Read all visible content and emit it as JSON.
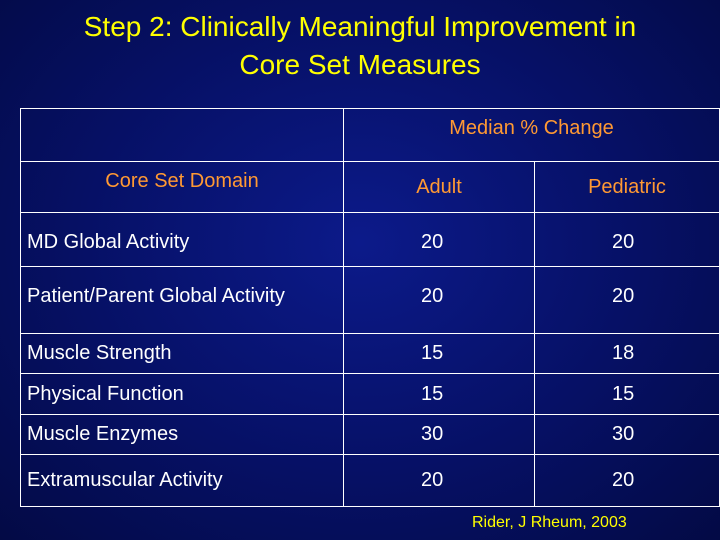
{
  "title": {
    "line1": "Step 2: Clinically Meaningful Improvement in",
    "line2": "Core Set Measures"
  },
  "table": {
    "group_header": "Median % Change",
    "col_domain": "Core Set Domain",
    "col_adult": "Adult",
    "col_pediatric": "Pediatric",
    "rows": [
      {
        "domain": "MD Global Activity",
        "adult": "20",
        "pediatric": "20"
      },
      {
        "domain": "Patient/Parent Global Activity",
        "adult": "20",
        "pediatric": "20"
      },
      {
        "domain": "Muscle Strength",
        "adult": "15",
        "pediatric": "18"
      },
      {
        "domain": "Physical Function",
        "adult": "15",
        "pediatric": "15"
      },
      {
        "domain": "Muscle Enzymes",
        "adult": "30",
        "pediatric": "30"
      },
      {
        "domain": "Extramuscular Activity",
        "adult": "20",
        "pediatric": "20"
      }
    ]
  },
  "citation": "Rider, J Rheum, 2003",
  "colors": {
    "title": "#ffff00",
    "header": "#ff9933",
    "body_text": "#ffffff",
    "background": "#061065"
  }
}
